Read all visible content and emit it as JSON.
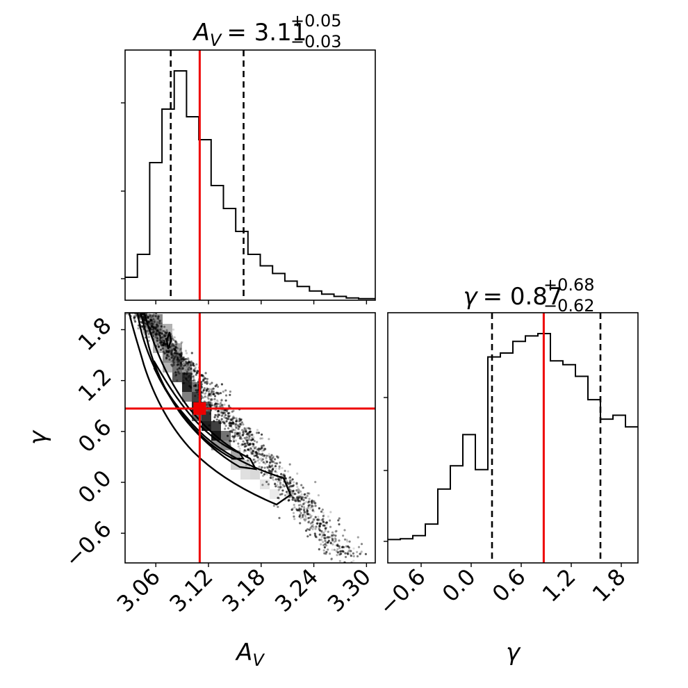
{
  "chart_data": [
    {
      "type": "histogram",
      "panel": "marginal-av",
      "title_symbol": "A",
      "title_subscript": "V",
      "title_value": "= 3.11",
      "title_upper": "+0.05",
      "title_lower": "−0.03",
      "xlim": [
        3.025,
        3.31
      ],
      "truth": 3.11,
      "quantiles": [
        3.077,
        3.16
      ],
      "bin_edges": [
        3.025,
        3.039,
        3.053,
        3.067,
        3.081,
        3.095,
        3.109,
        3.123,
        3.137,
        3.151,
        3.165,
        3.179,
        3.193,
        3.207,
        3.221,
        3.235,
        3.249,
        3.263,
        3.277,
        3.291,
        3.31
      ],
      "counts": [
        30,
        60,
        180,
        250,
        300,
        240,
        210,
        150,
        120,
        90,
        60,
        45,
        35,
        25,
        18,
        12,
        8,
        5,
        3,
        2
      ],
      "xticks": [
        3.06,
        3.12,
        3.18,
        3.24,
        3.3
      ],
      "xtick_labels": [
        "3.06",
        "3.12",
        "3.18",
        "3.24",
        "3.30"
      ],
      "xlabel_symbol": "A",
      "xlabel_subscript": "V"
    },
    {
      "type": "scatter-contour",
      "panel": "joint",
      "xlim": [
        3.025,
        3.31
      ],
      "ylim": [
        -0.95,
        2.0
      ],
      "truth": [
        3.11,
        0.87
      ],
      "yticks": [
        -0.6,
        0.0,
        0.6,
        1.2,
        1.8
      ],
      "ytick_labels": [
        "−0.6",
        "0.0",
        "0.6",
        "1.2",
        "1.8"
      ],
      "ylabel": "γ"
    },
    {
      "type": "histogram",
      "panel": "marginal-gamma",
      "title_symbol": "γ",
      "title_value": "= 0.87",
      "title_upper": "+0.68",
      "title_lower": "−0.62",
      "xlim": [
        -1.0,
        2.0
      ],
      "truth": 0.87,
      "quantiles": [
        0.25,
        1.55
      ],
      "bin_edges": [
        -1.0,
        -0.85,
        -0.7,
        -0.55,
        -0.4,
        -0.25,
        -0.1,
        0.05,
        0.2,
        0.35,
        0.5,
        0.65,
        0.8,
        0.95,
        1.1,
        1.25,
        1.4,
        1.55,
        1.7,
        1.85,
        2.0
      ],
      "counts": [
        30,
        31,
        35,
        50,
        95,
        125,
        165,
        120,
        265,
        270,
        285,
        292,
        295,
        260,
        255,
        240,
        210,
        185,
        190,
        175
      ],
      "xticks": [
        -0.6,
        0.0,
        0.6,
        1.2,
        1.8
      ],
      "xtick_labels": [
        "−0.6",
        "0.0",
        "0.6",
        "1.2",
        "1.8"
      ],
      "xlabel": "γ"
    }
  ],
  "colors": {
    "truth": "#ee0000",
    "quantile": "#000000",
    "hist": "#000000"
  }
}
